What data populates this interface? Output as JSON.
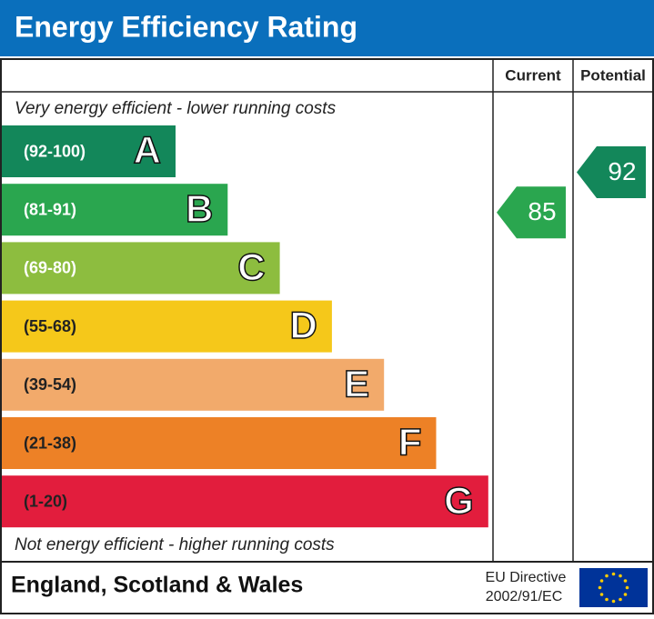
{
  "title": "Energy Efficiency Rating",
  "headers": [
    "Current",
    "Potential"
  ],
  "top_note": "Very energy efficient - lower running costs",
  "bottom_note": "Not energy efficient - higher running costs",
  "bands": [
    {
      "range": "(92-100)",
      "letter": "A",
      "color": "#13875a",
      "text_color": "#ffffff"
    },
    {
      "range": "(81-91)",
      "letter": "B",
      "color": "#2aa64f",
      "text_color": "#ffffff"
    },
    {
      "range": "(69-80)",
      "letter": "C",
      "color": "#8dbd3f",
      "text_color": "#ffffff"
    },
    {
      "range": "(55-68)",
      "letter": "D",
      "color": "#f5c81a",
      "text_color": "#222222"
    },
    {
      "range": "(39-54)",
      "letter": "E",
      "color": "#f2aa6b",
      "text_color": "#222222"
    },
    {
      "range": "(21-38)",
      "letter": "F",
      "color": "#ed8126",
      "text_color": "#222222"
    },
    {
      "range": "(1-20)",
      "letter": "G",
      "color": "#e21d3d",
      "text_color": "#222222"
    }
  ],
  "current": {
    "value": 85
  },
  "potential": {
    "value": 92
  },
  "footer": {
    "region": "England, Scotland & Wales",
    "directive_line1": "EU Directive",
    "directive_line2": "2002/91/EC"
  }
}
